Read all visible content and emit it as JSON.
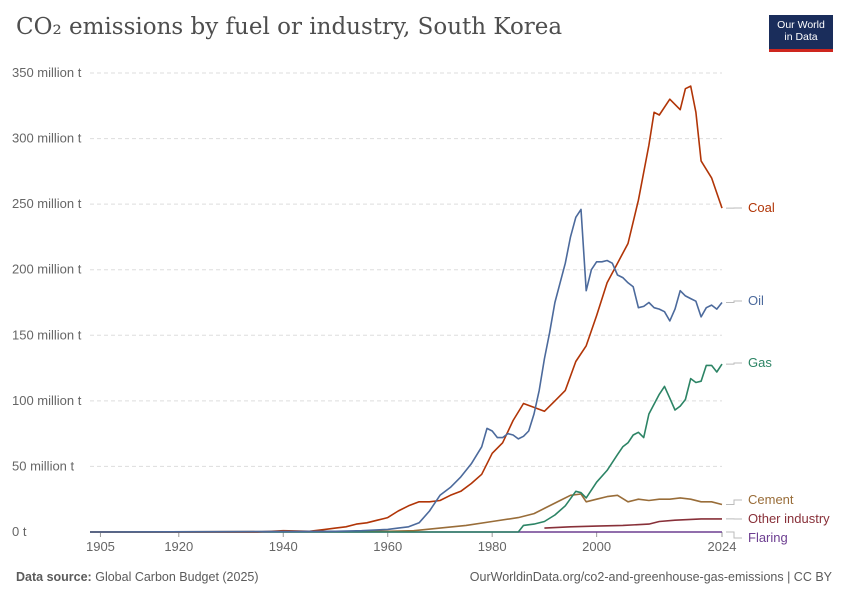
{
  "header": {
    "title": "CO₂ emissions by fuel or industry, South Korea",
    "logo_line1": "Our World",
    "logo_line2": "in Data"
  },
  "footer": {
    "source_label": "Data source:",
    "source_text": "Global Carbon Budget (2025)",
    "url_license": "OurWorldinData.org/co2-and-greenhouse-gas-emissions | CC BY"
  },
  "colors": {
    "coal": "#b13507",
    "oil": "#4c6a9c",
    "gas": "#2c8465",
    "cement": "#996d39",
    "other_industry": "#883039",
    "flaring": "#6d3e91",
    "grid": "#dddddd",
    "axis_text": "#666666",
    "logo_bg": "#1a2d5b",
    "logo_accent": "#ce261e"
  },
  "chart_data": {
    "type": "line",
    "title": "CO₂ emissions by fuel or industry, South Korea",
    "ylim": [
      0,
      350000000
    ],
    "xlim": [
      1903,
      2024
    ],
    "y_ticks": [
      {
        "value": 0,
        "label": "0 t"
      },
      {
        "value": 50000000,
        "label": "50 million t"
      },
      {
        "value": 100000000,
        "label": "100 million t"
      },
      {
        "value": 150000000,
        "label": "150 million t"
      },
      {
        "value": 200000000,
        "label": "200 million t"
      },
      {
        "value": 250000000,
        "label": "250 million t"
      },
      {
        "value": 300000000,
        "label": "300 million t"
      },
      {
        "value": 350000000,
        "label": "350 million t"
      }
    ],
    "x_ticks": [
      {
        "value": 1905,
        "label": "1905"
      },
      {
        "value": 1920,
        "label": "1920"
      },
      {
        "value": 1940,
        "label": "1940"
      },
      {
        "value": 1960,
        "label": "1960"
      },
      {
        "value": 1980,
        "label": "1980"
      },
      {
        "value": 2000,
        "label": "2000"
      },
      {
        "value": 2024,
        "label": "2024"
      }
    ],
    "grid": true,
    "legend": "inline-right",
    "series": [
      {
        "name": "Coal",
        "color_key": "coal",
        "x": [
          1903,
          1935,
          1940,
          1945,
          1948,
          1950,
          1952,
          1954,
          1956,
          1958,
          1960,
          1962,
          1964,
          1966,
          1968,
          1970,
          1972,
          1974,
          1976,
          1978,
          1980,
          1982,
          1984,
          1986,
          1988,
          1990,
          1992,
          1994,
          1996,
          1998,
          2000,
          2002,
          2004,
          2006,
          2008,
          2010,
          2011,
          2012,
          2014,
          2016,
          2017,
          2018,
          2019,
          2020,
          2022,
          2024
        ],
        "y": [
          0,
          0,
          1000000,
          500000,
          2000000,
          3000000,
          4000000,
          6000000,
          7000000,
          9000000,
          11000000,
          16000000,
          20000000,
          23000000,
          23000000,
          24000000,
          28000000,
          31000000,
          37000000,
          44000000,
          60000000,
          68000000,
          85000000,
          98000000,
          95000000,
          92000000,
          100000000,
          108000000,
          130000000,
          142000000,
          165000000,
          190000000,
          205000000,
          220000000,
          253000000,
          295000000,
          320000000,
          318000000,
          330000000,
          322000000,
          338000000,
          340000000,
          320000000,
          283000000,
          270000000,
          247000000
        ]
      },
      {
        "name": "Oil",
        "color_key": "oil",
        "x": [
          1903,
          1950,
          1955,
          1960,
          1962,
          1964,
          1966,
          1968,
          1970,
          1972,
          1974,
          1976,
          1978,
          1979,
          1980,
          1981,
          1982,
          1983,
          1984,
          1985,
          1986,
          1987,
          1988,
          1989,
          1990,
          1991,
          1992,
          1993,
          1994,
          1995,
          1996,
          1997,
          1998,
          1999,
          2000,
          2001,
          2002,
          2003,
          2004,
          2005,
          2006,
          2007,
          2008,
          2009,
          2010,
          2011,
          2012,
          2013,
          2014,
          2015,
          2016,
          2017,
          2018,
          2019,
          2020,
          2021,
          2022,
          2023,
          2024
        ],
        "y": [
          0,
          500000,
          1000000,
          2000000,
          3000000,
          4000000,
          7000000,
          16000000,
          28000000,
          34000000,
          42000000,
          52000000,
          65000000,
          79000000,
          77000000,
          72000000,
          72000000,
          75000000,
          74000000,
          71000000,
          73000000,
          77000000,
          90000000,
          108000000,
          132000000,
          152000000,
          175000000,
          190000000,
          205000000,
          225000000,
          240000000,
          246000000,
          184000000,
          200000000,
          206000000,
          206000000,
          207000000,
          205000000,
          196000000,
          194000000,
          190000000,
          187000000,
          171000000,
          172000000,
          175000000,
          171000000,
          170000000,
          168000000,
          161000000,
          170000000,
          184000000,
          180000000,
          178000000,
          176000000,
          164000000,
          171000000,
          173000000,
          170000000,
          175000000
        ]
      },
      {
        "name": "Gas",
        "color_key": "gas",
        "x": [
          1903,
          1985,
          1986,
          1988,
          1990,
          1992,
          1994,
          1996,
          1997,
          1998,
          2000,
          2002,
          2004,
          2005,
          2006,
          2007,
          2008,
          2009,
          2010,
          2012,
          2013,
          2014,
          2015,
          2016,
          2017,
          2018,
          2019,
          2020,
          2021,
          2022,
          2023,
          2024
        ],
        "y": [
          0,
          0,
          5000000,
          6000000,
          8000000,
          13000000,
          20000000,
          31000000,
          30000000,
          26000000,
          38000000,
          47000000,
          59000000,
          65000000,
          68000000,
          74000000,
          76000000,
          72000000,
          90000000,
          105000000,
          111000000,
          102000000,
          93000000,
          96000000,
          101000000,
          117000000,
          114000000,
          115000000,
          127000000,
          127000000,
          122000000,
          128000000
        ]
      },
      {
        "name": "Cement",
        "color_key": "cement",
        "x": [
          1903,
          1960,
          1965,
          1970,
          1975,
          1980,
          1985,
          1988,
          1990,
          1993,
          1995,
          1997,
          1998,
          2000,
          2002,
          2004,
          2006,
          2008,
          2010,
          2012,
          2014,
          2016,
          2018,
          2020,
          2022,
          2024
        ],
        "y": [
          0,
          500000,
          1000000,
          3000000,
          5000000,
          8000000,
          11000000,
          14000000,
          18000000,
          24000000,
          28000000,
          29000000,
          23000000,
          25000000,
          27000000,
          28000000,
          23000000,
          25000000,
          24000000,
          25000000,
          25000000,
          26000000,
          25000000,
          23000000,
          23000000,
          21000000
        ]
      },
      {
        "name": "Other industry",
        "color_key": "other_industry",
        "x": [
          1990,
          1995,
          2000,
          2005,
          2010,
          2012,
          2015,
          2020,
          2024
        ],
        "y": [
          3000000,
          4000000,
          4500000,
          5000000,
          6000000,
          8000000,
          9000000,
          10000000,
          10000000
        ]
      },
      {
        "name": "Flaring",
        "color_key": "flaring",
        "x": [
          1903,
          2024
        ],
        "y": [
          0,
          0
        ]
      }
    ]
  }
}
